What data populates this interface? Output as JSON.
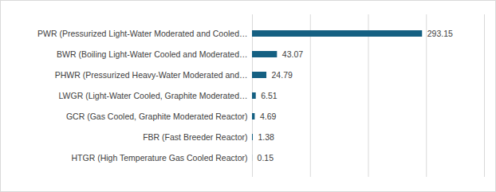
{
  "chart_data": {
    "type": "bar",
    "orientation": "horizontal",
    "categories": [
      "PWR (Pressurized Light-Water Moderated and Cooled…",
      "BWR (Boiling Light-Water Cooled and Moderated…",
      "PHWR (Pressurized Heavy-Water Moderated and…",
      "LWGR (Light-Water Cooled, Graphite Moderated…",
      "GCR (Gas Cooled, Graphite Moderated Reactor)",
      "FBR (Fast Breeder Reactor)",
      "HTGR (High Temperature Gas Cooled Reactor)"
    ],
    "values": [
      293.15,
      43.07,
      24.79,
      6.51,
      4.69,
      1.38,
      0.15
    ],
    "color": "#156082",
    "xlim": [
      0,
      400
    ],
    "xticks": [
      0,
      100,
      200,
      300,
      400
    ],
    "grid": true,
    "data_labels": true,
    "tick_labels": "y"
  }
}
